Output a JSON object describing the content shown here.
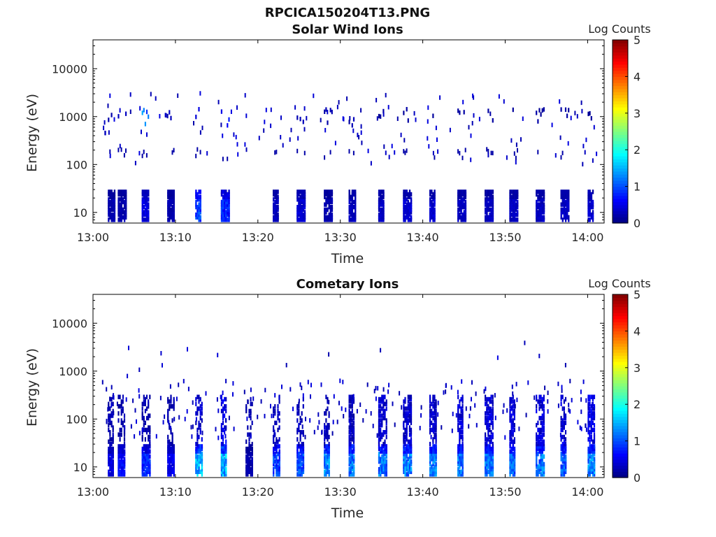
{
  "figure_title": "RPCICA150204T13.PNG",
  "chart_data": [
    {
      "type": "heatmap",
      "title": "Solar Wind Ions",
      "xlabel": "Time",
      "ylabel": "Energy (eV)",
      "x_ticks": [
        "13:00",
        "13:10",
        "13:20",
        "13:30",
        "13:40",
        "13:50",
        "14:00"
      ],
      "xlim_minutes": [
        0,
        62
      ],
      "y_scale": "log",
      "y_ticks": [
        "10",
        "100",
        "1000",
        "10000"
      ],
      "ylim": [
        6,
        40000
      ],
      "colorbar": {
        "label": "Log Counts",
        "ticks": [
          "0",
          "1",
          "2",
          "3",
          "4",
          "5"
        ],
        "range": [
          0,
          5
        ],
        "colormap": "jet"
      },
      "spectra_minutes": [
        1.8,
        3.0,
        5.9,
        9.0,
        12.4,
        15.5,
        21.8,
        24.7,
        28.0,
        31.0,
        34.6,
        37.6,
        40.8,
        44.2,
        47.5,
        50.5,
        53.7,
        56.7,
        60.0
      ],
      "band_10eV_peak_log_counts": [
        0.3,
        0.3,
        0.6,
        0.3,
        1.2,
        1.0,
        0.4,
        0.5,
        0.3,
        0.4,
        0.4,
        0.5,
        0.5,
        0.4,
        0.4,
        0.4,
        0.4,
        0.4,
        0.5
      ],
      "band_1000eV_peak_log_counts": [
        0.3,
        0.4,
        1.7,
        0.4,
        0.6,
        0.8,
        0.4,
        0.3,
        0.3,
        0.3,
        0.2,
        0.2,
        0.2,
        0.2,
        0.2,
        0.2,
        0.2,
        0.2,
        0.2
      ]
    },
    {
      "type": "heatmap",
      "title": "Cometary Ions",
      "xlabel": "Time",
      "ylabel": "Energy (eV)",
      "x_ticks": [
        "13:00",
        "13:10",
        "13:20",
        "13:30",
        "13:40",
        "13:50",
        "14:00"
      ],
      "xlim_minutes": [
        0,
        62
      ],
      "y_scale": "log",
      "y_ticks": [
        "10",
        "100",
        "1000",
        "10000"
      ],
      "ylim": [
        6,
        40000
      ],
      "colorbar": {
        "label": "Log Counts",
        "ticks": [
          "0",
          "1",
          "2",
          "3",
          "4",
          "5"
        ],
        "range": [
          0,
          5
        ],
        "colormap": "jet"
      },
      "spectra_minutes": [
        1.8,
        3.0,
        5.9,
        9.0,
        12.4,
        15.5,
        18.5,
        21.8,
        24.7,
        28.0,
        31.0,
        34.6,
        37.6,
        40.8,
        44.2,
        47.5,
        50.5,
        53.7,
        56.7,
        60.0
      ],
      "band_10eV_peak_log_counts": [
        0.6,
        0.8,
        1.0,
        0.7,
        1.9,
        1.9,
        0.3,
        1.2,
        1.3,
        1.6,
        1.5,
        1.5,
        1.6,
        1.6,
        1.5,
        1.5,
        1.4,
        1.5,
        1.4,
        1.6
      ],
      "band_100eV_peak_log_counts": [
        0.3,
        0.3,
        0.3,
        0.3,
        0.5,
        0.7,
        0.3,
        0.4,
        0.4,
        0.4,
        0.4,
        0.5,
        0.5,
        0.5,
        0.6,
        0.6,
        0.6,
        0.6,
        0.6,
        0.7
      ]
    }
  ]
}
